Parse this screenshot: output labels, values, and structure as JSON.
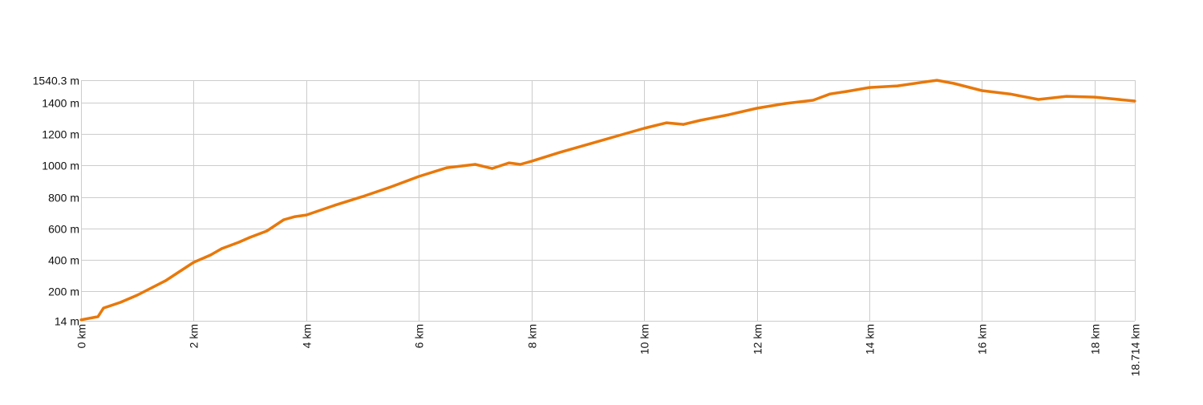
{
  "chart_data": {
    "type": "line",
    "title": "",
    "xlabel": "",
    "ylabel": "",
    "xlim": [
      0,
      18.714
    ],
    "ylim": [
      14,
      1540.3
    ],
    "grid": true,
    "line_color": "#e8780a",
    "grid_color": "#cccccc",
    "x_ticks": [
      {
        "value": 0,
        "label": "0 km"
      },
      {
        "value": 2,
        "label": "2 km"
      },
      {
        "value": 4,
        "label": "4 km"
      },
      {
        "value": 6,
        "label": "6 km"
      },
      {
        "value": 8,
        "label": "8 km"
      },
      {
        "value": 10,
        "label": "10 km"
      },
      {
        "value": 12,
        "label": "12 km"
      },
      {
        "value": 14,
        "label": "14 km"
      },
      {
        "value": 16,
        "label": "16 km"
      },
      {
        "value": 18,
        "label": "18 km"
      },
      {
        "value": 18.714,
        "label": "18.714 km"
      }
    ],
    "y_ticks": [
      {
        "value": 14,
        "label": "14 m"
      },
      {
        "value": 200,
        "label": "200 m"
      },
      {
        "value": 400,
        "label": "400 m"
      },
      {
        "value": 600,
        "label": "600 m"
      },
      {
        "value": 800,
        "label": "800 m"
      },
      {
        "value": 1000,
        "label": "1000 m"
      },
      {
        "value": 1200,
        "label": "1200 m"
      },
      {
        "value": 1400,
        "label": "1400 m"
      },
      {
        "value": 1540.3,
        "label": "1540.3  m"
      }
    ],
    "series": [
      {
        "x": [
          0,
          0.3,
          0.4,
          0.7,
          1.0,
          1.5,
          2.0,
          2.3,
          2.5,
          2.8,
          3.0,
          3.3,
          3.6,
          3.8,
          4.0,
          4.5,
          5.0,
          5.5,
          6.0,
          6.5,
          7.0,
          7.3,
          7.6,
          7.8,
          8.0,
          8.5,
          9.0,
          9.5,
          10.0,
          10.4,
          10.7,
          11.0,
          11.5,
          12.0,
          12.5,
          13.0,
          13.3,
          13.6,
          14.0,
          14.5,
          15.0,
          15.2,
          15.5,
          16.0,
          16.5,
          17.0,
          17.5,
          18.0,
          18.3,
          18.714
        ],
        "y": [
          20,
          40,
          95,
          131,
          177,
          268,
          385,
          431,
          472,
          512,
          543,
          584,
          655,
          675,
          685,
          746,
          802,
          863,
          930,
          985,
          1006,
          980,
          1016,
          1006,
          1026,
          1082,
          1133,
          1184,
          1235,
          1270,
          1260,
          1286,
          1321,
          1362,
          1392,
          1413,
          1453,
          1469,
          1494,
          1504,
          1530,
          1540,
          1520,
          1474,
          1453,
          1418,
          1438,
          1433,
          1423,
          1408
        ]
      }
    ]
  }
}
